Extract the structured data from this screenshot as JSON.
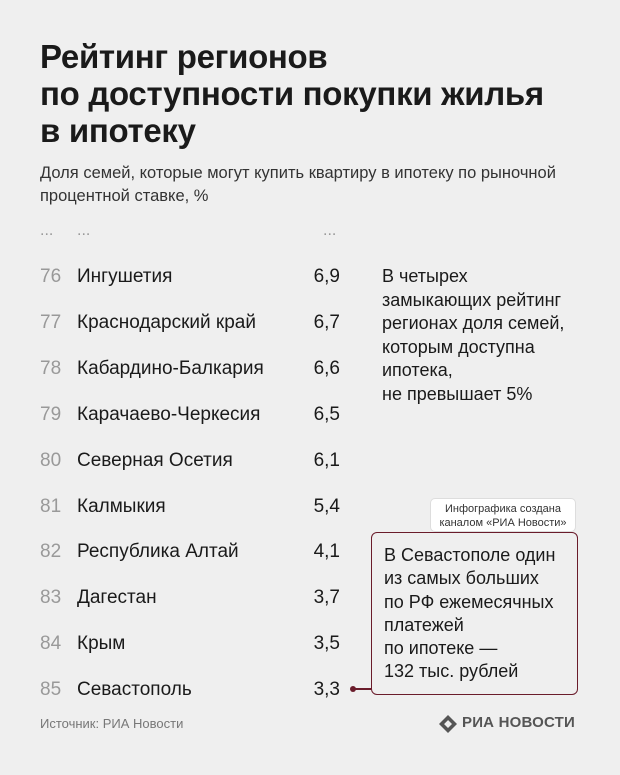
{
  "title_lines": [
    "Рейтинг регионов",
    "по доступности покупки жилья",
    "в ипотеку"
  ],
  "subtitle": "Доля семей, которые могут купить квартиру в ипотеку по рыночной процентной ставке, %",
  "ellipsis": "...",
  "chart_data": {
    "type": "table",
    "title": "Рейтинг регионов по доступности покупки жилья в ипотеку",
    "subtitle": "Доля семей, которые могут купить квартиру в ипотеку по рыночной процентной ставке, %",
    "columns": [
      "rank",
      "region",
      "value"
    ],
    "ranks": [
      "76",
      "77",
      "78",
      "79",
      "80",
      "81",
      "82",
      "83",
      "84",
      "85"
    ],
    "regions": [
      "Ингушетия",
      "Краснодарский край",
      "Кабардино-Балкария",
      "Карачаево-Черкесия",
      "Северная Осетия",
      "Калмыкия",
      "Республика Алтай",
      "Дагестан",
      "Крым",
      "Севастополь"
    ],
    "values": [
      6.9,
      6.7,
      6.6,
      6.5,
      6.1,
      5.4,
      4.1,
      3.7,
      3.5,
      3.3
    ],
    "value_labels": [
      "6,9",
      "6,7",
      "6,6",
      "6,5",
      "6,1",
      "5,4",
      "4,1",
      "3,7",
      "3,5",
      "3,3"
    ]
  },
  "note_lines": [
    "В четырех",
    "замыкающих рейтинг",
    "регионах доля семей,",
    "которым доступна",
    "ипотека,",
    "не превышает 5%"
  ],
  "credit_lines": [
    "Инфографика создана",
    "каналом «РИА Новости»"
  ],
  "callout_lines": [
    "В Севастополе один",
    "из самых больших",
    "по РФ ежемесячных",
    "платежей",
    "по ипотеке —",
    "132 тыс. рублей"
  ],
  "source": "Источник: РИА Новости",
  "logo_text": "РИА НОВОСТИ",
  "colors": {
    "background": "#efefef",
    "text": "#1a1a1a",
    "muted": "#999999",
    "accent": "#6a1c2b"
  },
  "icons": {
    "logo": "ria-novosti-logo-icon"
  }
}
